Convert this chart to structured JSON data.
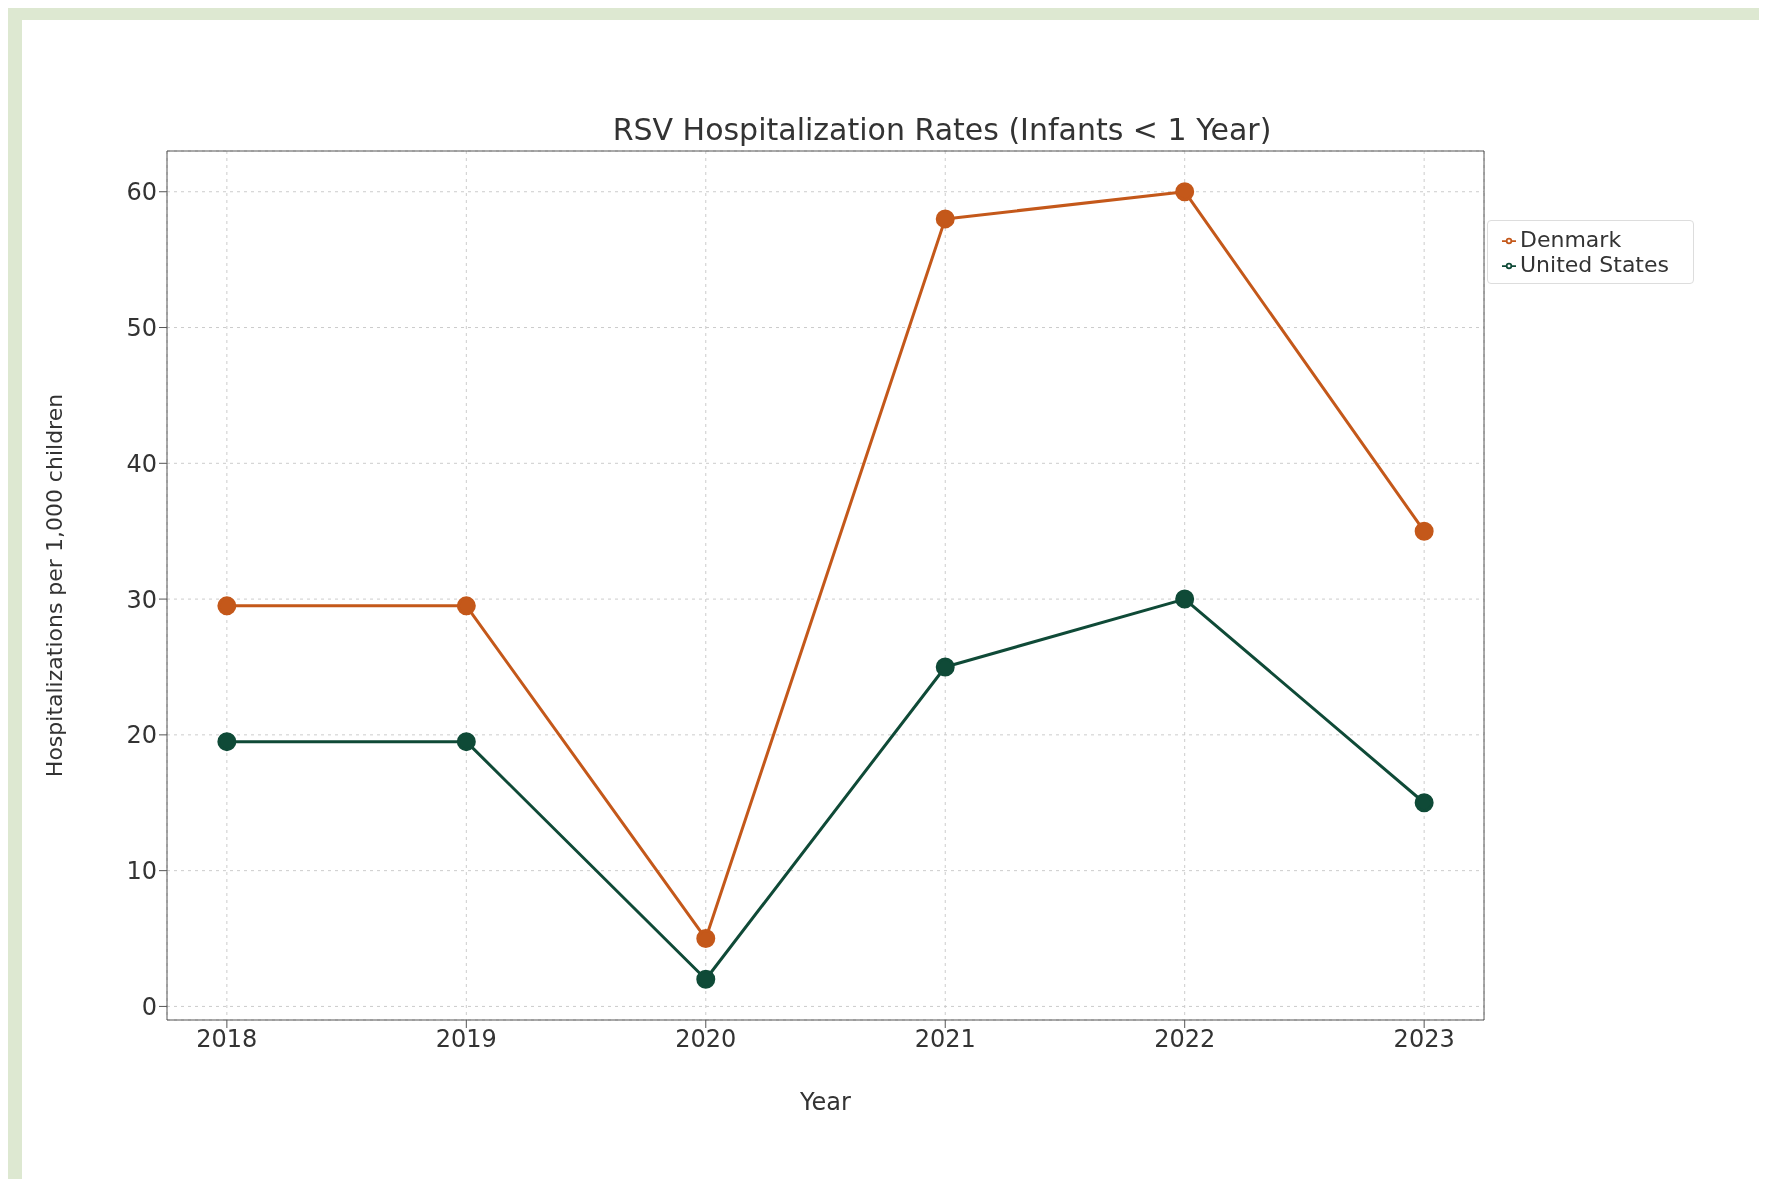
{
  "chart_data": {
    "type": "line",
    "title": "RSV Hospitalization Rates (Infants < 1 Year)",
    "xlabel": "Year",
    "ylabel": "Hospitalizations per 1,000 children",
    "x": [
      2018,
      2019,
      2020,
      2021,
      2022,
      2023
    ],
    "series": [
      {
        "name": "United States",
        "color": "#0f4a37",
        "values": [
          19.5,
          19.5,
          2,
          25,
          30,
          15
        ]
      },
      {
        "name": "Denmark",
        "color": "#c4581a",
        "values": [
          29.5,
          29.5,
          5,
          58,
          60,
          35
        ]
      }
    ],
    "xlim": [
      2017.75,
      2023.25
    ],
    "xticks": [
      2018,
      2019,
      2020,
      2021,
      2022,
      2023
    ],
    "ylim": [
      -1,
      63
    ],
    "yticks": [
      0,
      10,
      20,
      30,
      40,
      50,
      60
    ],
    "grid": true,
    "legend": "top right",
    "marker": "circle",
    "line_style": "solid"
  }
}
